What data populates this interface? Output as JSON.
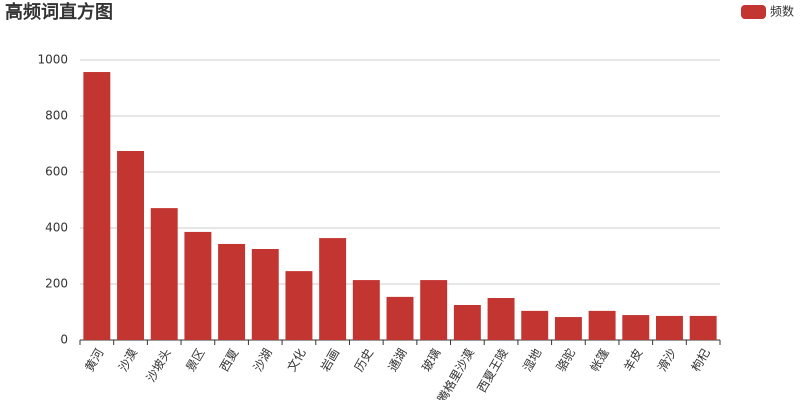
{
  "chart_data": {
    "type": "bar",
    "title": "高频词直方图",
    "categories": [
      "黄河",
      "沙漠",
      "沙坡头",
      "景区",
      "西夏",
      "沙湖",
      "文化",
      "岩画",
      "历史",
      "通湖",
      "玻璃",
      "腾格里沙漠",
      "西夏王陵",
      "湿地",
      "骆驼",
      "帐篷",
      "羊皮",
      "滑沙",
      "枸杞"
    ],
    "series": [
      {
        "name": "频数",
        "color": "#c23531",
        "values": [
          957,
          675,
          471,
          386,
          343,
          325,
          246,
          364,
          214,
          154,
          214,
          125,
          150,
          104,
          82,
          104,
          89,
          86,
          86
        ]
      }
    ],
    "ylim": [
      0,
      1000
    ],
    "yticks": [
      0,
      200,
      400,
      600,
      800,
      1000
    ],
    "grid": true,
    "legend": "top-right"
  }
}
